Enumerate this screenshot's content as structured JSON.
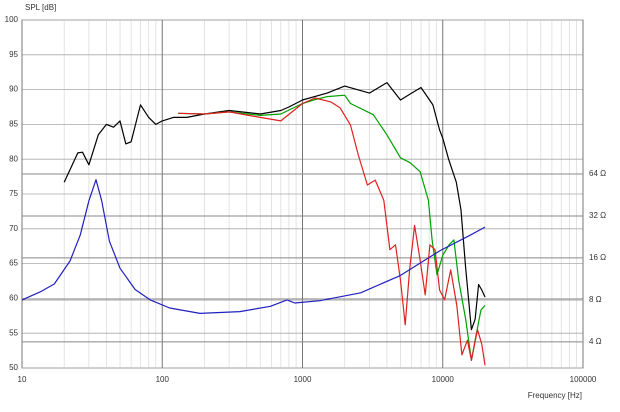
{
  "chart_data": {
    "type": "line",
    "y_label": "SPL [dB]",
    "x_label": "Frequency [Hz]",
    "xscale": "log",
    "y2scale": "log",
    "grid": true,
    "xlim": [
      10,
      100000
    ],
    "xticks": [
      10,
      100,
      1000,
      10000,
      100000
    ],
    "ylim": [
      50,
      100
    ],
    "yticks": [
      50,
      55,
      60,
      65,
      70,
      75,
      80,
      85,
      90,
      95,
      100
    ],
    "y2lim": [
      2.6,
      813
    ],
    "y2ticks": [
      {
        "value": 4,
        "label": "4 Ω"
      },
      {
        "value": 8,
        "label": "8 Ω"
      },
      {
        "value": 16,
        "label": "16 Ω"
      },
      {
        "value": 32,
        "label": "32 Ω"
      },
      {
        "value": 64,
        "label": "64 Ω"
      }
    ],
    "series": [
      {
        "color": "#000000",
        "x": [
          20,
          25,
          27,
          30,
          35,
          40,
          45,
          50,
          55,
          60,
          70,
          80,
          90,
          100,
          120,
          150,
          200,
          300,
          500,
          700,
          800,
          1000,
          1500,
          2000,
          3000,
          4000,
          5000,
          6000,
          7000,
          8500,
          9500,
          10000,
          11000,
          12500,
          13500,
          14500,
          16000,
          17000,
          18000,
          19000,
          20000
        ],
        "values": [
          76.7,
          80.9,
          81,
          79.2,
          83.5,
          85,
          84.6,
          85.5,
          82.2,
          82.5,
          87.8,
          86,
          85,
          85.5,
          86,
          86,
          86.5,
          87,
          86.5,
          87,
          87.5,
          88.5,
          89.5,
          90.5,
          89.5,
          91,
          88.5,
          89.5,
          90.3,
          87.8,
          84.2,
          83,
          80,
          76.7,
          72.7,
          64.8,
          55.5,
          57,
          62,
          61.2,
          60.2
        ]
      },
      {
        "color": "#00a000",
        "x": [
          130,
          200,
          300,
          500,
          700,
          1000,
          1200,
          1500,
          2000,
          2200,
          3200,
          4000,
          5000,
          5850,
          6900,
          7900,
          8400,
          9100,
          10000,
          11100,
          12000,
          13000,
          14600,
          16000,
          17000,
          18700,
          20000
        ],
        "values": [
          86.6,
          86.5,
          86.8,
          86.3,
          86.5,
          88,
          88.5,
          89,
          89.2,
          88,
          86.4,
          83.5,
          80.2,
          79.5,
          78.2,
          74.1,
          68.4,
          63.4,
          66.2,
          67.7,
          68.4,
          62.6,
          56.9,
          51.1,
          54,
          58.3,
          59
        ]
      },
      {
        "color": "#e02020",
        "x": [
          130,
          200,
          300,
          500,
          700,
          1000,
          1230,
          1600,
          1850,
          2200,
          2500,
          2900,
          3300,
          3800,
          4200,
          4600,
          5000,
          5400,
          5800,
          6300,
          6900,
          7500,
          8100,
          8800,
          9500,
          10300,
          11400,
          12600,
          13700,
          15000,
          16000,
          17700,
          19000,
          20000
        ],
        "values": [
          86.6,
          86.5,
          86.8,
          86,
          85.5,
          88,
          88.8,
          88.2,
          87.4,
          84.9,
          80.6,
          76.3,
          77,
          74.1,
          67,
          67.7,
          62.6,
          56.2,
          64.1,
          70.5,
          65.5,
          60.5,
          67.7,
          67,
          61.2,
          59.8,
          64.1,
          59,
          51.9,
          54,
          51.1,
          55.5,
          53.4,
          50.4
        ]
      },
      {
        "color": "#2020c0",
        "axis": "y2",
        "x": [
          10,
          13.4,
          17,
          22,
          26,
          30,
          33.7,
          37,
          42,
          50,
          64,
          82,
          113,
          186,
          358,
          590,
          777,
          880,
          1330,
          2600,
          5000,
          9600,
          15700,
          20000
        ],
        "values": [
          8,
          9.1,
          10.4,
          15.2,
          23.3,
          41.1,
          58.2,
          41.1,
          21.1,
          13.5,
          9.5,
          8,
          7,
          6.4,
          6.6,
          7.2,
          8,
          7.6,
          7.9,
          9,
          12,
          18.1,
          23.3,
          26.6
        ]
      }
    ]
  }
}
